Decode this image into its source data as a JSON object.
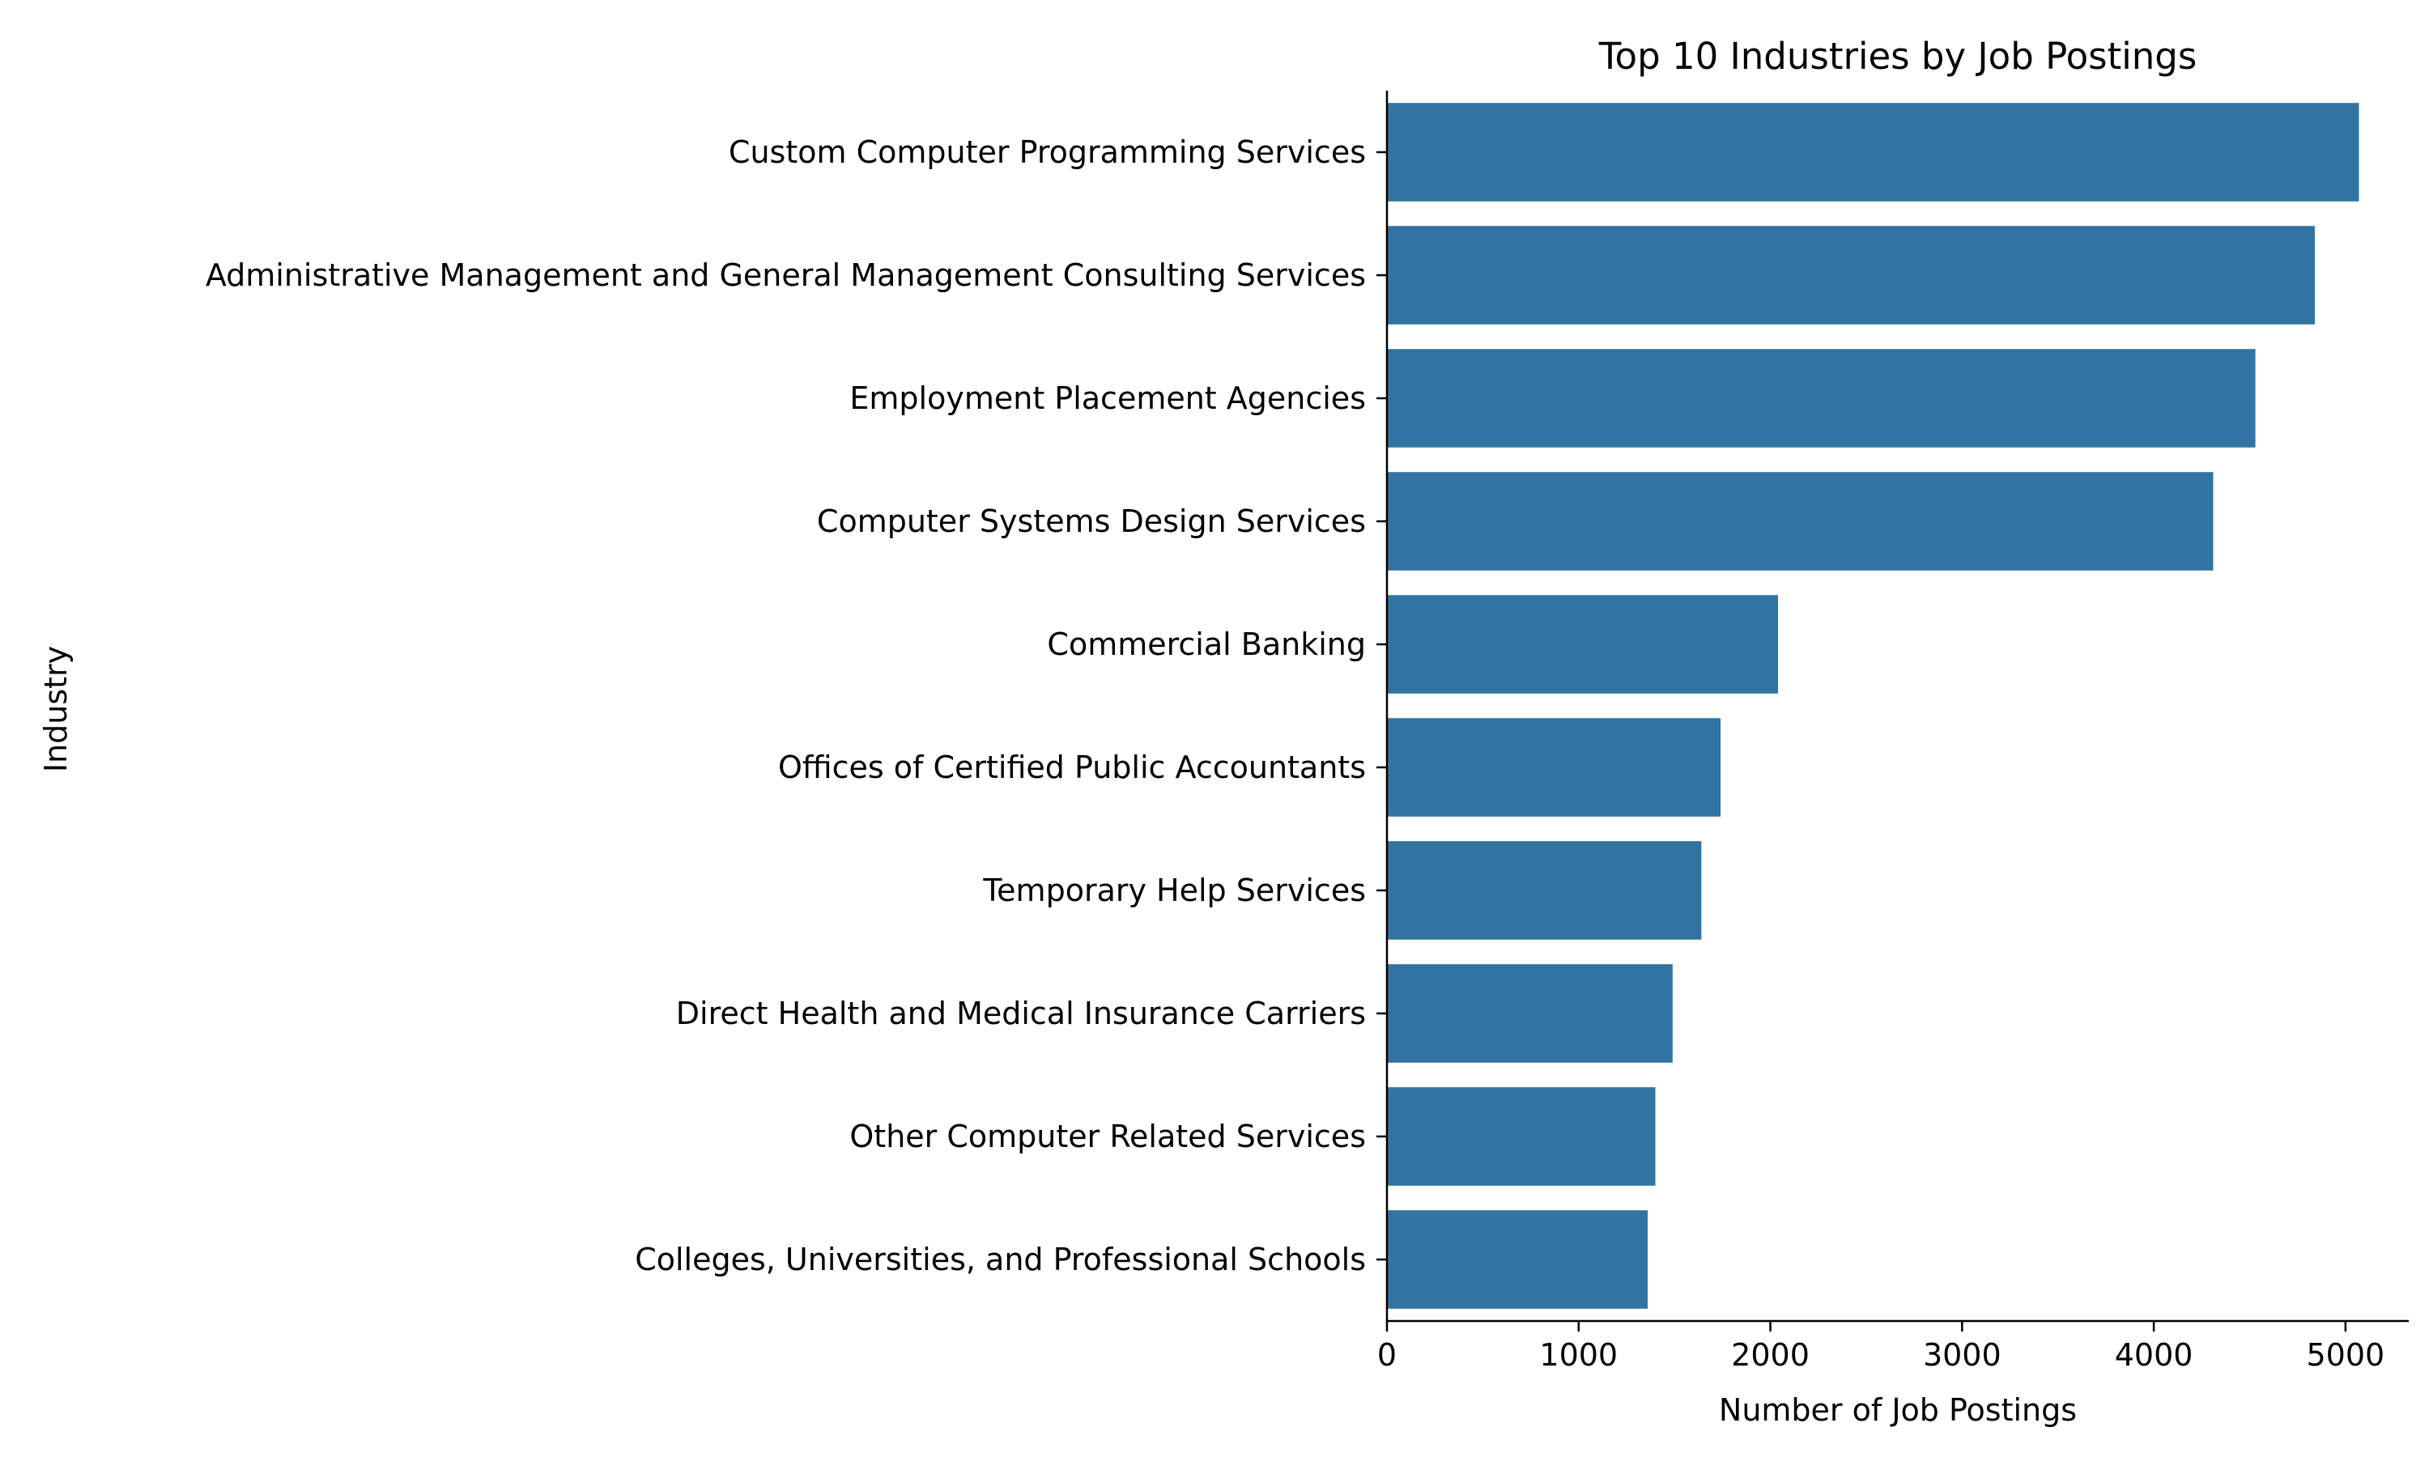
{
  "chart_data": {
    "type": "bar",
    "orientation": "horizontal",
    "title": "Top 10 Industries by Job Postings",
    "xlabel": "Number of Job Postings",
    "ylabel": "Industry",
    "categories": [
      "Custom Computer Programming Services",
      "Administrative Management and General Management Consulting Services",
      "Employment Placement Agencies",
      "Computer Systems Design Services",
      "Commercial Banking",
      "Offices of Certified Public Accountants",
      "Temporary Help Services",
      "Direct Health and Medical Insurance Carriers",
      "Other Computer Related Services",
      "Colleges, Universities, and Professional Schools"
    ],
    "values": [
      5070,
      4840,
      4530,
      4310,
      2040,
      1740,
      1640,
      1490,
      1400,
      1360
    ],
    "xlim": [
      0,
      5330
    ],
    "xticks": [
      0,
      1000,
      2000,
      3000,
      4000,
      5000
    ],
    "xtick_labels": [
      "0",
      "1000",
      "2000",
      "3000",
      "4000",
      "5000"
    ],
    "grid": false,
    "colors": {
      "bar": "#3274a1"
    }
  }
}
